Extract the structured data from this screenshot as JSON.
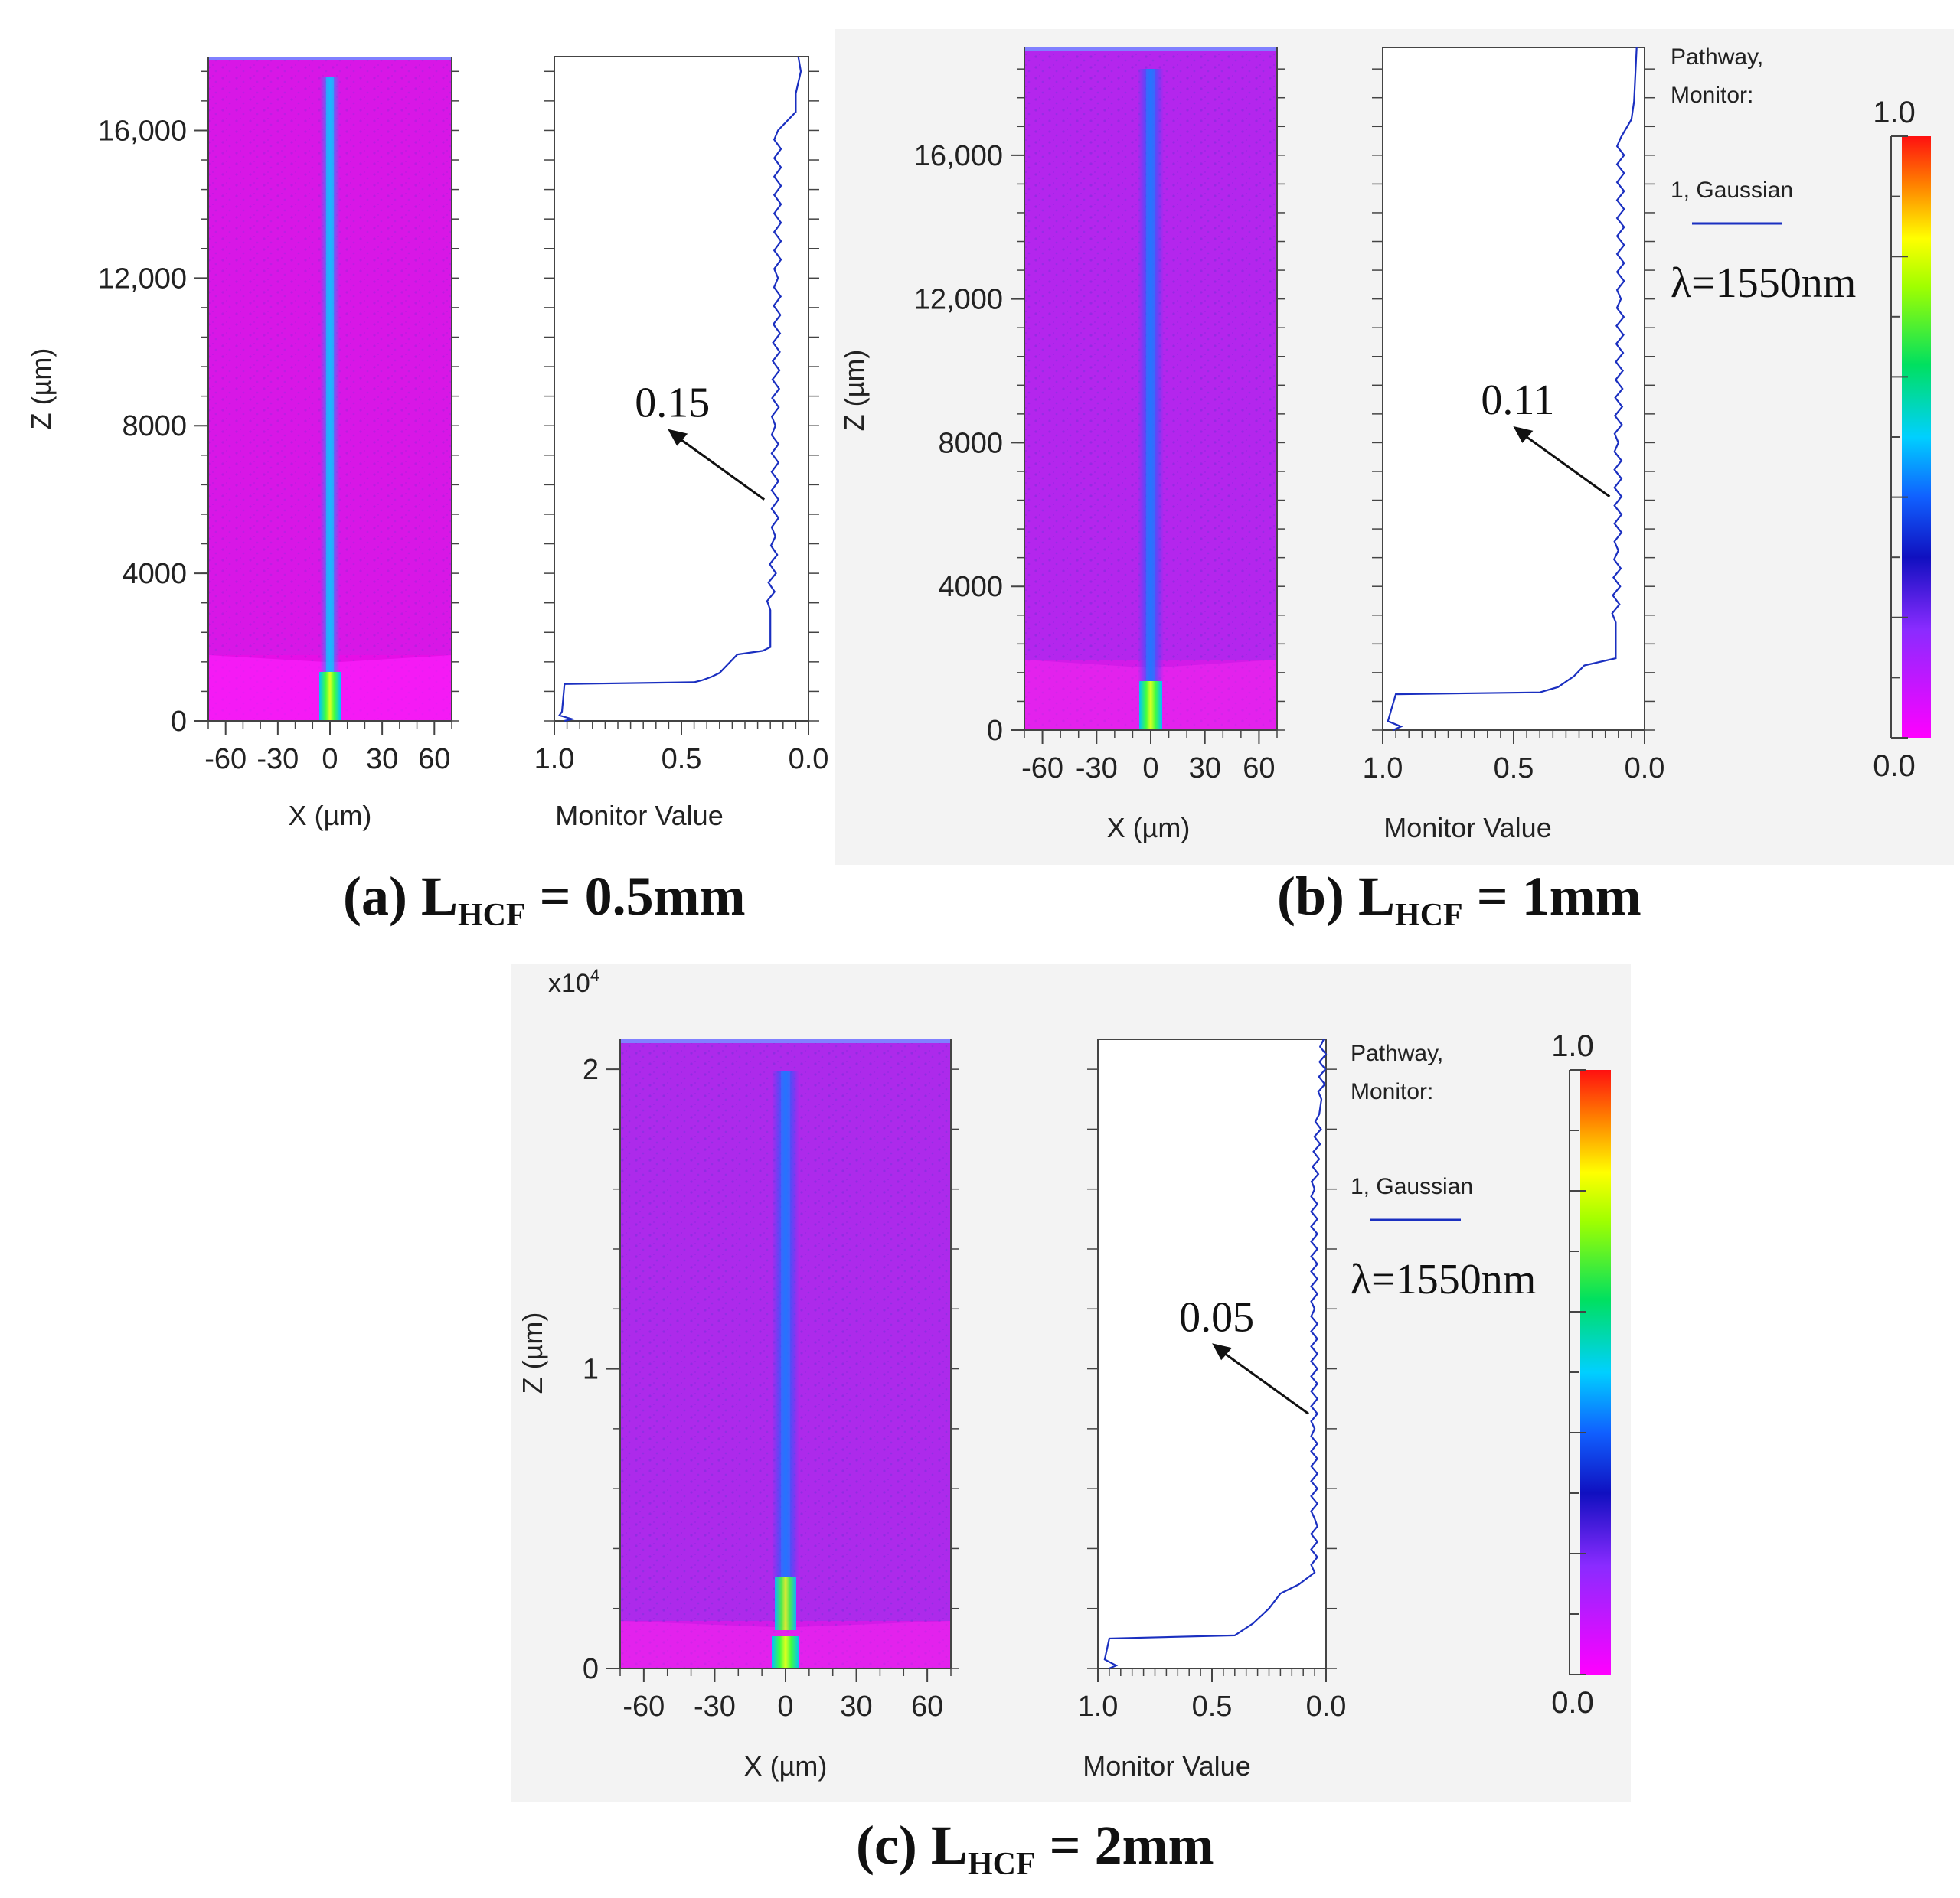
{
  "chart_data": [
    {
      "id": "a",
      "type": "heatmap",
      "caption": {
        "prefix": "(a) L",
        "sub": "HCF",
        "suffix": " = 0.5mm"
      },
      "field": {
        "xlabel": "X (µm)",
        "ylabel": "Z (µm)",
        "xlim": [
          -70,
          70
        ],
        "ylim": [
          0,
          18000
        ],
        "xticks": [
          -60,
          -30,
          0,
          30,
          60
        ],
        "xtick_labels": [
          "-60",
          "-30",
          "0",
          "30",
          "60"
        ],
        "yticks": [
          0,
          4000,
          8000,
          12000,
          16000
        ],
        "ytick_labels": [
          "0",
          "4000",
          "8000",
          "12,000",
          "16,000"
        ]
      },
      "monitor": {
        "xlabel": "Monitor Value",
        "xlim": [
          1.0,
          0.0
        ],
        "xticks": [
          1.0,
          0.5,
          0.0
        ],
        "xtick_labels": [
          "1.0",
          "0.5",
          "0.0"
        ],
        "series": [
          {
            "name": "1, Gaussian",
            "z": [
              0,
              50,
              150,
              250,
              1000,
              1050,
              1100,
              1200,
              1300,
              1800,
              1900,
              2000,
              3000,
              5000,
              8000,
              12000,
              16000,
              16500,
              17000,
              17600,
              18000
            ],
            "value": [
              0.96,
              0.93,
              0.98,
              0.97,
              0.96,
              0.45,
              0.42,
              0.38,
              0.35,
              0.28,
              0.18,
              0.15,
              0.15,
              0.13,
              0.13,
              0.12,
              0.12,
              0.05,
              0.05,
              0.03,
              0.04
            ]
          }
        ],
        "annotation": {
          "text": "0.15",
          "z": 6000,
          "value": 0.15
        }
      },
      "colorbar": null,
      "legend": null
    },
    {
      "id": "b",
      "type": "heatmap",
      "caption": {
        "prefix": "(b) L",
        "sub": "HCF",
        "suffix": " = 1mm"
      },
      "field": {
        "xlabel": "X (µm)",
        "ylabel": "Z (µm)",
        "xlim": [
          -70,
          70
        ],
        "ylim": [
          0,
          19000
        ],
        "xticks": [
          -60,
          -30,
          0,
          30,
          60
        ],
        "xtick_labels": [
          "-60",
          "-30",
          "0",
          "30",
          "60"
        ],
        "yticks": [
          0,
          4000,
          8000,
          12000,
          16000
        ],
        "ytick_labels": [
          "0",
          "4000",
          "8000",
          "12,000",
          "16,000"
        ]
      },
      "monitor": {
        "xlabel": "Monitor Value",
        "xlim": [
          1.0,
          0.0
        ],
        "xticks": [
          1.0,
          0.5,
          0.0
        ],
        "xtick_labels": [
          "1.0",
          "0.5",
          "0.0"
        ],
        "series": [
          {
            "name": "1, Gaussian",
            "z": [
              0,
              100,
              250,
              1000,
              1050,
              1200,
              1500,
              1800,
              2000,
              3000,
              5000,
              8000,
              12000,
              16500,
              17000,
              17500,
              19000
            ],
            "value": [
              0.96,
              0.93,
              0.98,
              0.95,
              0.4,
              0.33,
              0.27,
              0.23,
              0.11,
              0.11,
              0.1,
              0.1,
              0.09,
              0.09,
              0.05,
              0.04,
              0.03
            ]
          }
        ],
        "annotation": {
          "text": "0.11",
          "z": 6500,
          "value": 0.11
        }
      },
      "colorbar": {
        "max_label": "1.0",
        "min_label": "0.0",
        "min": 0.0,
        "max": 1.0
      },
      "legend": {
        "title": "Pathway,",
        "title2": "Monitor:",
        "entry": "1, Gaussian",
        "wavelength": "λ=1550nm"
      }
    },
    {
      "id": "c",
      "type": "heatmap",
      "caption": {
        "prefix": "(c) L",
        "sub": "HCF",
        "suffix": " = 2mm"
      },
      "field": {
        "xlabel": "X (µm)",
        "ylabel": "Z (µm)",
        "scale_label": "x10",
        "scale_exp": "4",
        "xlim": [
          -70,
          70
        ],
        "ylim": [
          0,
          21000
        ],
        "xticks": [
          -60,
          -30,
          0,
          30,
          60
        ],
        "xtick_labels": [
          "-60",
          "-30",
          "0",
          "30",
          "60"
        ],
        "yticks": [
          0,
          10000,
          20000
        ],
        "ytick_labels": [
          "0",
          "1",
          "2"
        ]
      },
      "monitor": {
        "xlabel": "Monitor Value",
        "xlim": [
          1.0,
          0.0
        ],
        "xticks": [
          1.0,
          0.5,
          0.0
        ],
        "xtick_labels": [
          "1.0",
          "0.5",
          "0.0"
        ],
        "series": [
          {
            "name": "1, Gaussian",
            "z": [
              0,
              100,
              300,
              1000,
              1100,
              1500,
              2000,
              2500,
              2800,
              3200,
              5000,
              8000,
              12000,
              16000,
              18500,
              19000,
              21000
            ],
            "value": [
              0.95,
              0.92,
              0.97,
              0.95,
              0.4,
              0.32,
              0.25,
              0.2,
              0.12,
              0.05,
              0.05,
              0.05,
              0.05,
              0.05,
              0.03,
              0.02,
              0.01
            ]
          }
        ],
        "annotation": {
          "text": "0.05",
          "z": 8500,
          "value": 0.05
        }
      },
      "colorbar": {
        "max_label": "1.0",
        "min_label": "0.0",
        "min": 0.0,
        "max": 1.0
      },
      "legend": {
        "title": "Pathway,",
        "title2": "Monitor:",
        "entry": "1, Gaussian",
        "wavelength": "λ=1550nm"
      }
    }
  ]
}
